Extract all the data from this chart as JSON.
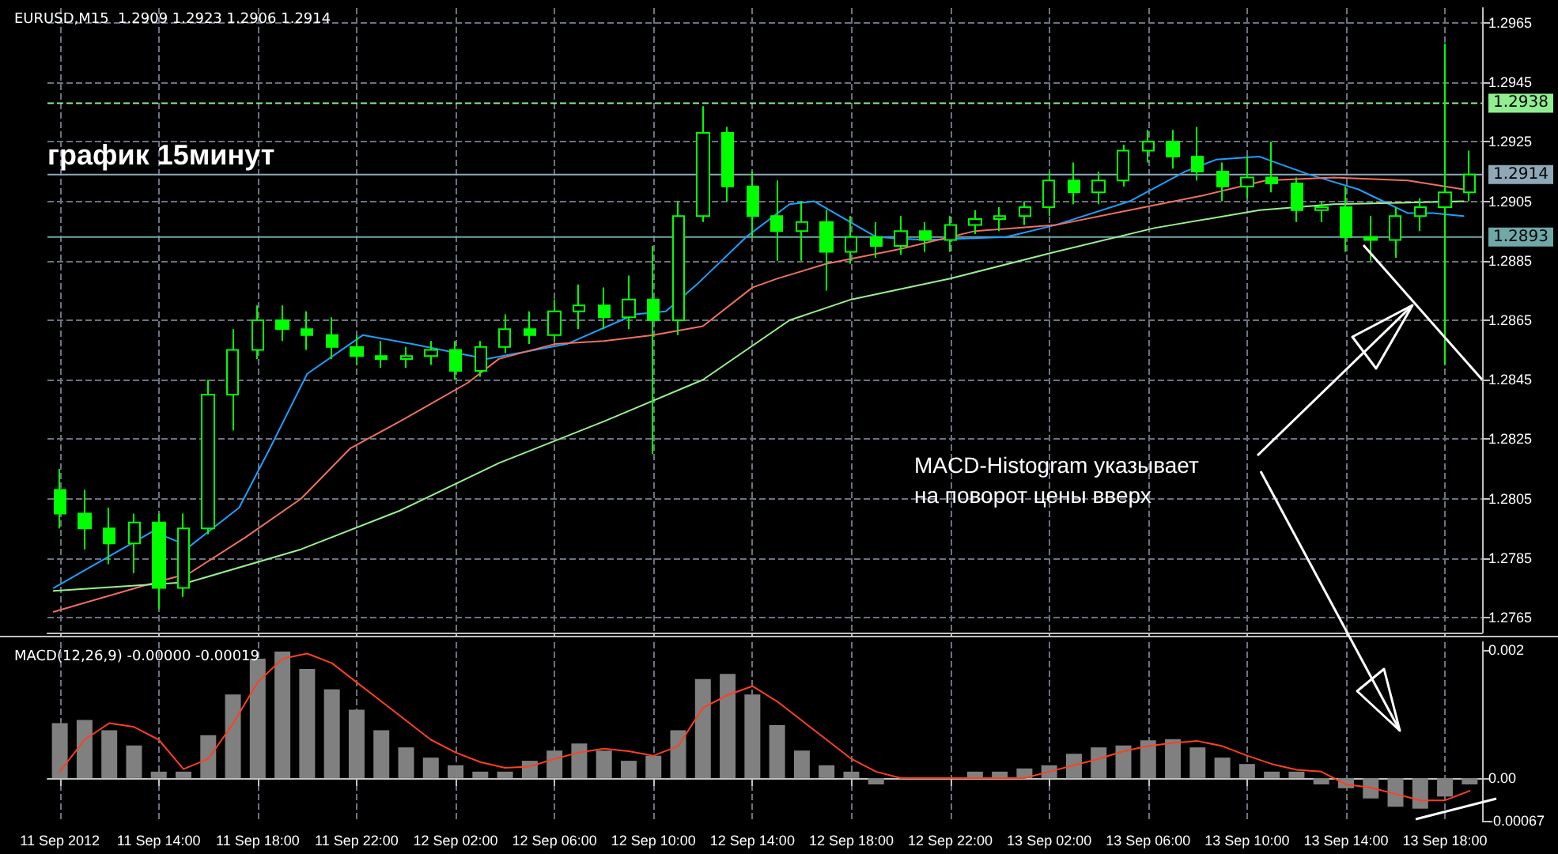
{
  "chart_data": [
    {
      "type": "candlestick",
      "title": "EURUSD,M15  1.2909 1.2923 1.2906 1.2914",
      "color": "#00ff00",
      "annotations": [
        "график 15минут",
        "MACD-Histogram указывает\nна поворот цены вверх"
      ],
      "x": [
        "2012-09-11T10:00",
        "2012-09-11T11:00",
        "2012-09-11T12:00",
        "2012-09-11T13:00",
        "2012-09-11T14:00",
        "2012-09-11T15:00",
        "2012-09-11T16:00",
        "2012-09-11T17:00",
        "2012-09-11T18:00",
        "2012-09-11T19:00",
        "2012-09-11T20:00",
        "2012-09-11T21:00",
        "2012-09-11T22:00",
        "2012-09-11T23:00",
        "2012-09-12T00:00",
        "2012-09-12T01:00",
        "2012-09-12T02:00",
        "2012-09-12T03:00",
        "2012-09-12T04:00",
        "2012-09-12T05:00",
        "2012-09-12T06:00",
        "2012-09-12T07:00",
        "2012-09-12T08:00",
        "2012-09-12T09:00",
        "2012-09-12T10:00",
        "2012-09-12T11:00",
        "2012-09-12T12:00",
        "2012-09-12T13:00",
        "2012-09-12T14:00",
        "2012-09-12T15:00",
        "2012-09-12T16:00",
        "2012-09-12T17:00",
        "2012-09-12T18:00",
        "2012-09-12T19:00",
        "2012-09-12T20:00",
        "2012-09-12T21:00",
        "2012-09-12T22:00",
        "2012-09-12T23:00",
        "2012-09-13T00:00",
        "2012-09-13T01:00",
        "2012-09-13T02:00",
        "2012-09-13T03:00",
        "2012-09-13T04:00",
        "2012-09-13T05:00",
        "2012-09-13T06:00",
        "2012-09-13T07:00",
        "2012-09-13T08:00",
        "2012-09-13T09:00",
        "2012-09-13T10:00",
        "2012-09-13T11:00",
        "2012-09-13T12:00",
        "2012-09-13T13:00",
        "2012-09-13T14:00",
        "2012-09-13T15:00",
        "2012-09-13T16:00",
        "2012-09-13T17:00",
        "2012-09-13T18:00",
        "2012-09-13T19:00"
      ],
      "ohlc": [
        [
          1.2808,
          1.2815,
          1.2795,
          1.28
        ],
        [
          1.28,
          1.2808,
          1.2788,
          1.2795
        ],
        [
          1.2795,
          1.2802,
          1.2783,
          1.279
        ],
        [
          1.279,
          1.28,
          1.278,
          1.2797
        ],
        [
          1.2797,
          1.28,
          1.2768,
          1.2775
        ],
        [
          1.2775,
          1.28,
          1.2772,
          1.2795
        ],
        [
          1.2795,
          1.2845,
          1.2793,
          1.284
        ],
        [
          1.284,
          1.2862,
          1.2828,
          1.2855
        ],
        [
          1.2855,
          1.287,
          1.2852,
          1.2865
        ],
        [
          1.2865,
          1.287,
          1.2858,
          1.2862
        ],
        [
          1.2862,
          1.2868,
          1.2855,
          1.286
        ],
        [
          1.286,
          1.2866,
          1.2852,
          1.2856
        ],
        [
          1.2856,
          1.286,
          1.285,
          1.2853
        ],
        [
          1.2853,
          1.2858,
          1.2849,
          1.2852
        ],
        [
          1.2852,
          1.2856,
          1.2849,
          1.2853
        ],
        [
          1.2853,
          1.2858,
          1.285,
          1.2855
        ],
        [
          1.2855,
          1.2858,
          1.2845,
          1.2848
        ],
        [
          1.2848,
          1.2858,
          1.2846,
          1.2856
        ],
        [
          1.2856,
          1.2867,
          1.2854,
          1.2862
        ],
        [
          1.2862,
          1.2868,
          1.2857,
          1.286
        ],
        [
          1.286,
          1.2872,
          1.2858,
          1.2868
        ],
        [
          1.2868,
          1.2877,
          1.2862,
          1.287
        ],
        [
          1.287,
          1.2876,
          1.2862,
          1.2866
        ],
        [
          1.2866,
          1.288,
          1.2862,
          1.2872
        ],
        [
          1.2872,
          1.289,
          1.282,
          1.2865
        ],
        [
          1.2865,
          1.2905,
          1.286,
          1.29
        ],
        [
          1.29,
          1.2937,
          1.2898,
          1.2928
        ],
        [
          1.2928,
          1.293,
          1.2905,
          1.291
        ],
        [
          1.291,
          1.2915,
          1.2893,
          1.29
        ],
        [
          1.29,
          1.2912,
          1.2885,
          1.2895
        ],
        [
          1.2895,
          1.2905,
          1.2885,
          1.2898
        ],
        [
          1.2898,
          1.2902,
          1.2875,
          1.2888
        ],
        [
          1.2888,
          1.29,
          1.2884,
          1.2893
        ],
        [
          1.2893,
          1.2898,
          1.2886,
          1.289
        ],
        [
          1.289,
          1.29,
          1.2887,
          1.2895
        ],
        [
          1.2895,
          1.2898,
          1.2888,
          1.2892
        ],
        [
          1.2892,
          1.29,
          1.2888,
          1.2897
        ],
        [
          1.2897,
          1.2902,
          1.2894,
          1.2899
        ],
        [
          1.2899,
          1.2903,
          1.2895,
          1.29
        ],
        [
          1.29,
          1.2905,
          1.2897,
          1.2903
        ],
        [
          1.2903,
          1.2915,
          1.29,
          1.2912
        ],
        [
          1.2912,
          1.2918,
          1.2904,
          1.2908
        ],
        [
          1.2908,
          1.2915,
          1.2904,
          1.2912
        ],
        [
          1.2912,
          1.2924,
          1.291,
          1.2922
        ],
        [
          1.2922,
          1.2929,
          1.2918,
          1.2925
        ],
        [
          1.2925,
          1.2929,
          1.2916,
          1.292
        ],
        [
          1.292,
          1.293,
          1.2912,
          1.2915
        ],
        [
          1.2915,
          1.2918,
          1.2905,
          1.291
        ],
        [
          1.291,
          1.292,
          1.2906,
          1.2913
        ],
        [
          1.2913,
          1.2925,
          1.2908,
          1.2911
        ],
        [
          1.2911,
          1.2913,
          1.2898,
          1.2902
        ],
        [
          1.2902,
          1.2905,
          1.2898,
          1.2903
        ],
        [
          1.2903,
          1.291,
          1.2888,
          1.2893
        ],
        [
          1.2893,
          1.29,
          1.2885,
          1.2892
        ],
        [
          1.2892,
          1.2903,
          1.2886,
          1.29
        ],
        [
          1.29,
          1.2906,
          1.2895,
          1.2903
        ],
        [
          1.2903,
          1.2958,
          1.285,
          1.2908
        ],
        [
          1.2908,
          1.2922,
          1.2905,
          1.2914
        ]
      ],
      "series": [
        {
          "type": "line",
          "color": "#1e9fff",
          "x": [
            "2012-09-11T09:45",
            "2012-09-11T13:45",
            "2012-09-11T15:15",
            "2012-09-11T17:15",
            "2012-09-11T18:30",
            "2012-09-11T20:00",
            "2012-09-11T22:15",
            "2012-09-12T00:15",
            "2012-09-12T03:15",
            "2012-09-12T06:30",
            "2012-09-12T09:15",
            "2012-09-12T10:30",
            "2012-09-12T11:45",
            "2012-09-12T13:45",
            "2012-09-12T15:30",
            "2012-09-12T16:30",
            "2012-09-12T19:00",
            "2012-09-12T21:00",
            "2012-09-13T00:15",
            "2012-09-13T02:15",
            "2012-09-13T05:15",
            "2012-09-13T07:30",
            "2012-09-13T08:45",
            "2012-09-13T10:30",
            "2012-09-13T12:30",
            "2012-09-13T14:30",
            "2012-09-13T15:30",
            "2012-09-13T16:30",
            "2012-09-13T17:30",
            "2012-09-13T18:45"
          ],
          "values": [
            1.2775,
            1.2794,
            1.2789,
            1.2802,
            1.2822,
            1.2847,
            1.286,
            1.2857,
            1.2852,
            1.2857,
            1.2867,
            1.2868,
            1.2877,
            1.2893,
            1.2904,
            1.2905,
            1.2893,
            1.2892,
            1.2893,
            1.2897,
            1.2905,
            1.2915,
            1.2919,
            1.292,
            1.2914,
            1.2909,
            1.2905,
            1.2901,
            1.2901,
            1.29
          ]
        },
        {
          "type": "line",
          "color": "#f07060",
          "x": [
            "2012-09-11T09:45",
            "2012-09-11T13:30",
            "2012-09-11T15:15",
            "2012-09-11T17:30",
            "2012-09-11T19:45",
            "2012-09-11T21:45",
            "2012-09-11T23:45",
            "2012-09-12T02:30",
            "2012-09-12T03:45",
            "2012-09-12T06:00",
            "2012-09-12T08:00",
            "2012-09-12T10:00",
            "2012-09-12T12:00",
            "2012-09-12T14:00",
            "2012-09-12T15:00",
            "2012-09-12T17:00",
            "2012-09-12T20:00",
            "2012-09-12T23:00",
            "2012-09-13T02:15",
            "2012-09-13T05:15",
            "2012-09-13T08:15",
            "2012-09-13T10:45",
            "2012-09-13T13:30",
            "2012-09-13T16:30",
            "2012-09-13T18:45"
          ],
          "values": [
            1.2767,
            1.2776,
            1.278,
            1.2792,
            1.2805,
            1.2822,
            1.2831,
            1.2844,
            1.2852,
            1.2857,
            1.2858,
            1.286,
            1.2863,
            1.2876,
            1.2879,
            1.2884,
            1.2889,
            1.2895,
            1.2897,
            1.2902,
            1.2907,
            1.2912,
            1.2913,
            1.2912,
            1.2909
          ]
        },
        {
          "type": "line",
          "color": "#98f090",
          "x": [
            "2012-09-11T09:45",
            "2012-09-11T15:15",
            "2012-09-11T19:45",
            "2012-09-11T23:45",
            "2012-09-12T03:45",
            "2012-09-12T08:00",
            "2012-09-12T12:00",
            "2012-09-12T15:30",
            "2012-09-12T18:00",
            "2012-09-12T22:00",
            "2012-09-13T02:15",
            "2012-09-13T06:15",
            "2012-09-13T10:30",
            "2012-09-13T13:30",
            "2012-09-13T18:45"
          ],
          "values": [
            1.2774,
            1.2777,
            1.2788,
            1.2801,
            1.2817,
            1.2831,
            1.2845,
            1.2865,
            1.2872,
            1.2879,
            1.2888,
            1.2896,
            1.2902,
            1.2904,
            1.2905
          ]
        }
      ],
      "xlim": [
        "2012-09-11T09:30",
        "2012-09-13T19:30"
      ],
      "xticks": [
        {
          "value": "2012-09-11T10:00",
          "label": null
        },
        {
          "value": "2012-09-11T14:00",
          "label": null
        },
        {
          "value": "2012-09-11T18:00",
          "label": null
        },
        {
          "value": "2012-09-11T22:00",
          "label": null
        },
        {
          "value": "2012-09-12T02:00",
          "label": null
        },
        {
          "value": "2012-09-12T06:00",
          "label": null
        },
        {
          "value": "2012-09-12T10:00",
          "label": null
        },
        {
          "value": "2012-09-12T14:00",
          "label": null
        },
        {
          "value": "2012-09-12T18:00",
          "label": null
        },
        {
          "value": "2012-09-12T22:00",
          "label": null
        },
        {
          "value": "2012-09-13T02:00",
          "label": null
        },
        {
          "value": "2012-09-13T06:00",
          "label": null
        },
        {
          "value": "2012-09-13T10:00",
          "label": null
        },
        {
          "value": "2012-09-13T14:00",
          "label": null
        },
        {
          "value": "2012-09-13T18:00",
          "label": null
        }
      ],
      "ylim": [
        1.276,
        1.297
      ],
      "yticks": [
        1.2765,
        1.2785,
        1.2805,
        1.2825,
        1.2845,
        1.2865,
        1.2885,
        1.2905,
        1.2925,
        1.2945,
        1.2965
      ],
      "ref_lines": [
        {
          "axis": "y",
          "value": 1.2938,
          "label": "1.2938",
          "color": "#90ee90",
          "line_style": "dashed"
        },
        {
          "axis": "y",
          "value": 1.2914,
          "label": "1.2914",
          "color": "#8fa8b8"
        },
        {
          "axis": "y",
          "value": 1.2893,
          "label": "1.2893",
          "color": "#70a8a8"
        }
      ],
      "grid": true,
      "marker": "none",
      "tick_labels": "y"
    },
    {
      "type": "bar",
      "title": "MACD(12,26,9) -0.00000 -0.00019",
      "x": [
        "2012-09-11T10:00",
        "2012-09-11T11:00",
        "2012-09-11T12:00",
        "2012-09-11T13:00",
        "2012-09-11T14:00",
        "2012-09-11T15:00",
        "2012-09-11T16:00",
        "2012-09-11T17:00",
        "2012-09-11T18:00",
        "2012-09-11T19:00",
        "2012-09-11T20:00",
        "2012-09-11T21:00",
        "2012-09-11T22:00",
        "2012-09-11T23:00",
        "2012-09-12T00:00",
        "2012-09-12T01:00",
        "2012-09-12T02:00",
        "2012-09-12T03:00",
        "2012-09-12T04:00",
        "2012-09-12T05:00",
        "2012-09-12T06:00",
        "2012-09-12T07:00",
        "2012-09-12T08:00",
        "2012-09-12T09:00",
        "2012-09-12T10:00",
        "2012-09-12T11:00",
        "2012-09-12T12:00",
        "2012-09-12T13:00",
        "2012-09-12T14:00",
        "2012-09-12T15:00",
        "2012-09-12T16:00",
        "2012-09-12T17:00",
        "2012-09-12T18:00",
        "2012-09-12T19:00",
        "2012-09-12T20:00",
        "2012-09-12T21:00",
        "2012-09-12T22:00",
        "2012-09-12T23:00",
        "2012-09-13T00:00",
        "2012-09-13T01:00",
        "2012-09-13T02:00",
        "2012-09-13T03:00",
        "2012-09-13T04:00",
        "2012-09-13T05:00",
        "2012-09-13T06:00",
        "2012-09-13T07:00",
        "2012-09-13T08:00",
        "2012-09-13T09:00",
        "2012-09-13T10:00",
        "2012-09-13T11:00",
        "2012-09-13T12:00",
        "2012-09-13T13:00",
        "2012-09-13T14:00",
        "2012-09-13T15:00",
        "2012-09-13T16:00",
        "2012-09-13T17:00",
        "2012-09-13T18:00",
        "2012-09-13T19:00"
      ],
      "series": [
        {
          "color": "#808080",
          "values": [
            0.00086,
            0.00091,
            0.00075,
            0.00051,
            0.0001,
            0.0001,
            0.00067,
            0.00131,
            0.00187,
            0.00198,
            0.00171,
            0.00139,
            0.00107,
            0.00075,
            0.00048,
            0.00032,
            0.0002,
            0.0001,
            0.0001,
            0.00027,
            0.00043,
            0.00054,
            0.00043,
            0.00027,
            0.00035,
            0.00075,
            0.00155,
            0.00163,
            0.00131,
            0.00083,
            0.00043,
            0.0002,
            0.0001,
            -0.0001,
            0,
            0,
            0,
            0.0001,
            0.0001,
            0.00015,
            0.0002,
            0.00038,
            0.00048,
            0.00051,
            0.00059,
            0.00061,
            0.00048,
            0.00032,
            0.00022,
            0.0001,
            0.0001,
            -0.0001,
            -0.00016,
            -0.00032,
            -0.00045,
            -0.00048,
            -0.00029,
            -0.0001
          ]
        },
        {
          "type": "line",
          "color": "#ff4020",
          "values": [
            0.0001,
            0.0006,
            0.00086,
            0.0008,
            0.0006,
            0.00014,
            0.0003,
            0.00085,
            0.0015,
            0.00187,
            0.00195,
            0.0018,
            0.0015,
            0.0012,
            0.0009,
            0.0006,
            0.0004,
            0.00025,
            0.00016,
            0.00018,
            0.0003,
            0.0004,
            0.00046,
            0.00042,
            0.00035,
            0.0005,
            0.0011,
            0.0013,
            0.00144,
            0.0012,
            0.0009,
            0.0006,
            0.0003,
            0.0001,
            0,
            0,
            0,
            0,
            0,
            0,
            0.0001,
            0.0002,
            0.0003,
            0.00042,
            0.0005,
            0.00055,
            0.00058,
            0.0005,
            0.00035,
            0.00022,
            0.00013,
            0.0001,
            -0.0001,
            -0.00015,
            -0.00025,
            -0.00035,
            -0.00035,
            -0.0002
          ]
        }
      ],
      "xlim": [
        "2012-09-11T09:30",
        "2012-09-13T19:30"
      ],
      "xticks": [
        {
          "value": "2012-09-11T10:00",
          "label": "11 Sep 2012"
        },
        {
          "value": "2012-09-11T14:00",
          "label": "11 Sep 14:00"
        },
        {
          "value": "2012-09-11T18:00",
          "label": "11 Sep 18:00"
        },
        {
          "value": "2012-09-11T22:00",
          "label": "11 Sep 22:00"
        },
        {
          "value": "2012-09-12T02:00",
          "label": "12 Sep 02:00"
        },
        {
          "value": "2012-09-12T06:00",
          "label": "12 Sep 06:00"
        },
        {
          "value": "2012-09-12T10:00",
          "label": "12 Sep 10:00"
        },
        {
          "value": "2012-09-12T14:00",
          "label": "12 Sep 14:00"
        },
        {
          "value": "2012-09-12T18:00",
          "label": "12 Sep 18:00"
        },
        {
          "value": "2012-09-12T22:00",
          "label": "12 Sep 22:00"
        },
        {
          "value": "2012-09-13T02:00",
          "label": "13 Sep 02:00"
        },
        {
          "value": "2012-09-13T06:00",
          "label": "13 Sep 06:00"
        },
        {
          "value": "2012-09-13T10:00",
          "label": "13 Sep 10:00"
        },
        {
          "value": "2012-09-13T14:00",
          "label": "13 Sep 14:00"
        },
        {
          "value": "2012-09-13T18:00",
          "label": "13 Sep 18:00"
        }
      ],
      "ylim": [
        -0.00067,
        0.00213
      ],
      "yticks": [
        0.002,
        {
          "value": 0,
          "label": "0.00"
        },
        -0.00067
      ],
      "grid": "x",
      "marker": "none"
    }
  ]
}
